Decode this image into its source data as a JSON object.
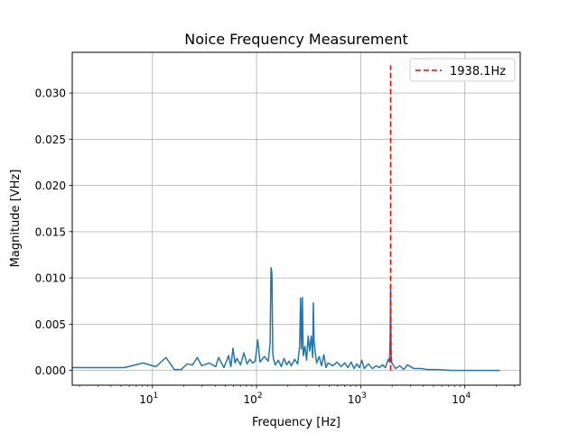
{
  "chart_data": {
    "type": "line",
    "title": "Noice Frequency Measurement",
    "xlabel": "Frequency [Hz]",
    "ylabel": "Magnitude [VHz]",
    "x_scale": "log",
    "xlim": [
      1.7,
      34000
    ],
    "ylim": [
      -0.0016,
      0.0344
    ],
    "grid": true,
    "legend_position": "top-right",
    "x_ticks": [
      {
        "base": "10",
        "exp": "1",
        "value": 10
      },
      {
        "base": "10",
        "exp": "2",
        "value": 100
      },
      {
        "base": "10",
        "exp": "3",
        "value": 1000
      },
      {
        "base": "10",
        "exp": "4",
        "value": 10000
      }
    ],
    "y_ticks": [
      {
        "label": "0.000",
        "value": 0.0
      },
      {
        "label": "0.005",
        "value": 0.005
      },
      {
        "label": "0.010",
        "value": 0.01
      },
      {
        "label": "0.015",
        "value": 0.015
      },
      {
        "label": "0.020",
        "value": 0.02
      },
      {
        "label": "0.025",
        "value": 0.025
      },
      {
        "label": "0.030",
        "value": 0.03
      }
    ],
    "series": [
      {
        "name": "",
        "color": "#1f77b4",
        "x": [
          1.7,
          5.4,
          8.1,
          10.8,
          13.5,
          16.2,
          18.9,
          21.6,
          24.3,
          27.0,
          29.7,
          35.1,
          40.5,
          43.2,
          48.6,
          54.0,
          56.7,
          59.4,
          62.1,
          64.8,
          70.2,
          75.6,
          81.0,
          86.4,
          91.8,
          97.2,
          102.6,
          108.0,
          118.8,
          129.6,
          135.0,
          137.7,
          140.4,
          143.1,
          145.8,
          151.2,
          162.0,
          172.8,
          183.6,
          194.4,
          205.2,
          216.0,
          232.2,
          248.4,
          259.2,
          264.6,
          270.0,
          275.4,
          280.8,
          291.6,
          302.4,
          313.2,
          324.0,
          334.8,
          345.6,
          351.0,
          356.4,
          367.2,
          378.0,
          399.6,
          421.2,
          442.8,
          464.4,
          486.0,
          540.0,
          594.0,
          648.0,
          702.0,
          756.0,
          810.0,
          864.0,
          918.0,
          972.0,
          1026.0,
          1080.0,
          1188.0,
          1296.0,
          1404.0,
          1512.0,
          1620.0,
          1728.0,
          1836.0,
          1890.0,
          1917.0,
          1938.1,
          1960.0,
          1987.0,
          2052.0,
          2160.0,
          2376.0,
          2592.0,
          2808.0,
          3240.0,
          3780.0,
          4320.0,
          5400.0,
          7560.0,
          10800.0,
          15120.0,
          21600.0
        ],
        "values": [
          0.0003,
          0.0003,
          0.0008,
          0.0004,
          0.0014,
          0.0001,
          0.0001,
          0.0007,
          0.0006,
          0.0014,
          0.0005,
          0.0008,
          0.0004,
          0.0014,
          0.0003,
          0.0016,
          0.0004,
          0.0024,
          0.0008,
          0.0013,
          0.0006,
          0.0019,
          0.0007,
          0.0012,
          0.0008,
          0.001,
          0.0033,
          0.0009,
          0.0015,
          0.001,
          0.003,
          0.0111,
          0.0105,
          0.0018,
          0.0012,
          0.0006,
          0.0011,
          0.0004,
          0.0013,
          0.0006,
          0.001,
          0.0005,
          0.0012,
          0.0007,
          0.0026,
          0.0078,
          0.0023,
          0.0079,
          0.0016,
          0.0026,
          0.0011,
          0.0037,
          0.0021,
          0.0037,
          0.0014,
          0.0073,
          0.0031,
          0.0018,
          0.0008,
          0.0015,
          0.0005,
          0.0017,
          0.0003,
          0.0008,
          0.0005,
          0.0009,
          0.0004,
          0.0008,
          0.0003,
          0.0009,
          0.0002,
          0.0007,
          0.0003,
          0.0011,
          0.0002,
          0.0007,
          0.0002,
          0.0005,
          0.0003,
          0.0006,
          0.0003,
          0.0012,
          0.0009,
          0.0035,
          0.0092,
          0.002,
          0.0008,
          0.0006,
          0.0002,
          0.0005,
          0.0001,
          0.0006,
          0.0002,
          0.0002,
          0.0001,
          0.0001,
          0.0,
          0.0,
          0.0,
          0.0
        ]
      },
      {
        "name": "1938.1Hz",
        "color": "#ff0000",
        "style": "dashed",
        "x": [
          1938.1,
          1938.1
        ],
        "values": [
          0.0,
          0.033
        ]
      }
    ]
  }
}
